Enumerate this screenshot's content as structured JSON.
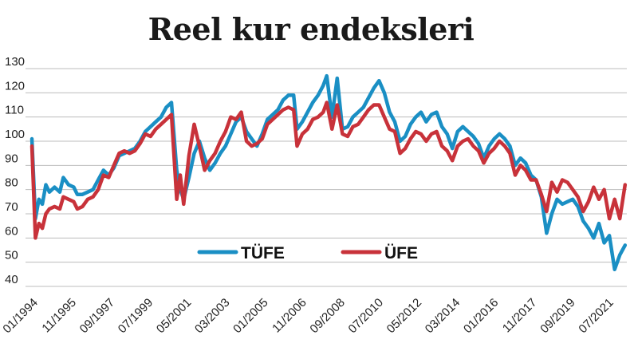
{
  "chart_data": {
    "type": "line",
    "title": "Reel kur endeksleri",
    "xlabel": "",
    "ylabel": "",
    "ylim": [
      40,
      130
    ],
    "yticks": [
      40,
      50,
      60,
      70,
      80,
      90,
      100,
      110,
      120,
      130
    ],
    "xlim": [
      "1994-01",
      "2022-06"
    ],
    "xtick_labels": [
      "01/1994",
      "11/1995",
      "09/1997",
      "07/1999",
      "05/2001",
      "03/2003",
      "01/2005",
      "11/2006",
      "09/2008",
      "07/2010",
      "05/2012",
      "03/2014",
      "01/2016",
      "11/2017",
      "09/2019",
      "07/2021"
    ],
    "grid": "horizontal",
    "legend": "inside-bottom-center",
    "colors": {
      "TÜFE": "#1a8fc4",
      "ÜFE": "#c8323a"
    },
    "series": [
      {
        "name": "TÜFE",
        "points": [
          [
            "1994-01",
            101
          ],
          [
            "1994-03",
            68
          ],
          [
            "1994-05",
            76
          ],
          [
            "1994-07",
            74
          ],
          [
            "1994-09",
            82
          ],
          [
            "1994-11",
            79
          ],
          [
            "1995-02",
            81
          ],
          [
            "1995-05",
            79
          ],
          [
            "1995-07",
            85
          ],
          [
            "1995-10",
            82
          ],
          [
            "1996-01",
            81
          ],
          [
            "1996-03",
            78
          ],
          [
            "1996-06",
            78
          ],
          [
            "1996-09",
            79
          ],
          [
            "1996-12",
            80
          ],
          [
            "1997-03",
            84
          ],
          [
            "1997-06",
            88
          ],
          [
            "1997-09",
            86
          ],
          [
            "1997-12",
            89
          ],
          [
            "1998-03",
            94
          ],
          [
            "1998-06",
            95
          ],
          [
            "1998-09",
            96
          ],
          [
            "1998-12",
            97
          ],
          [
            "1999-03",
            100
          ],
          [
            "1999-06",
            104
          ],
          [
            "1999-09",
            106
          ],
          [
            "1999-12",
            108
          ],
          [
            "2000-03",
            110
          ],
          [
            "2000-06",
            114
          ],
          [
            "2000-09",
            116
          ],
          [
            "2000-12",
            88
          ],
          [
            "2001-02",
            80
          ],
          [
            "2001-04",
            76
          ],
          [
            "2001-07",
            85
          ],
          [
            "2001-10",
            95
          ],
          [
            "2002-01",
            100
          ],
          [
            "2002-04",
            93
          ],
          [
            "2002-07",
            88
          ],
          [
            "2002-10",
            91
          ],
          [
            "2003-01",
            95
          ],
          [
            "2003-04",
            98
          ],
          [
            "2003-07",
            103
          ],
          [
            "2003-10",
            108
          ],
          [
            "2004-01",
            110
          ],
          [
            "2004-04",
            104
          ],
          [
            "2004-07",
            101
          ],
          [
            "2004-10",
            98
          ],
          [
            "2005-01",
            103
          ],
          [
            "2005-04",
            109
          ],
          [
            "2005-07",
            111
          ],
          [
            "2005-10",
            113
          ],
          [
            "2006-01",
            117
          ],
          [
            "2006-04",
            119
          ],
          [
            "2006-07",
            119
          ],
          [
            "2006-09",
            105
          ],
          [
            "2006-12",
            108
          ],
          [
            "2007-03",
            112
          ],
          [
            "2007-06",
            116
          ],
          [
            "2007-09",
            119
          ],
          [
            "2007-12",
            123
          ],
          [
            "2008-02",
            127
          ],
          [
            "2008-05",
            110
          ],
          [
            "2008-08",
            126
          ],
          [
            "2008-11",
            105
          ],
          [
            "2009-02",
            106
          ],
          [
            "2009-05",
            110
          ],
          [
            "2009-08",
            112
          ],
          [
            "2009-11",
            114
          ],
          [
            "2010-02",
            118
          ],
          [
            "2010-05",
            122
          ],
          [
            "2010-08",
            125
          ],
          [
            "2010-11",
            120
          ],
          [
            "2011-02",
            112
          ],
          [
            "2011-05",
            108
          ],
          [
            "2011-08",
            100
          ],
          [
            "2011-11",
            102
          ],
          [
            "2012-02",
            107
          ],
          [
            "2012-05",
            110
          ],
          [
            "2012-08",
            112
          ],
          [
            "2012-11",
            108
          ],
          [
            "2013-02",
            111
          ],
          [
            "2013-05",
            112
          ],
          [
            "2013-08",
            106
          ],
          [
            "2013-11",
            103
          ],
          [
            "2014-02",
            97
          ],
          [
            "2014-05",
            104
          ],
          [
            "2014-08",
            106
          ],
          [
            "2014-11",
            104
          ],
          [
            "2015-02",
            102
          ],
          [
            "2015-05",
            99
          ],
          [
            "2015-08",
            93
          ],
          [
            "2015-11",
            98
          ],
          [
            "2016-02",
            101
          ],
          [
            "2016-05",
            103
          ],
          [
            "2016-08",
            101
          ],
          [
            "2016-11",
            98
          ],
          [
            "2017-02",
            90
          ],
          [
            "2017-05",
            93
          ],
          [
            "2017-08",
            91
          ],
          [
            "2017-11",
            86
          ],
          [
            "2018-02",
            84
          ],
          [
            "2018-05",
            77
          ],
          [
            "2018-08",
            62
          ],
          [
            "2018-11",
            70
          ],
          [
            "2019-02",
            76
          ],
          [
            "2019-05",
            74
          ],
          [
            "2019-08",
            75
          ],
          [
            "2019-11",
            76
          ],
          [
            "2020-02",
            73
          ],
          [
            "2020-05",
            67
          ],
          [
            "2020-08",
            64
          ],
          [
            "2020-11",
            60
          ],
          [
            "2021-02",
            66
          ],
          [
            "2021-05",
            58
          ],
          [
            "2021-08",
            61
          ],
          [
            "2021-11",
            47
          ],
          [
            "2022-02",
            53
          ],
          [
            "2022-05",
            57
          ]
        ]
      },
      {
        "name": "ÜFE",
        "points": [
          [
            "1994-01",
            98
          ],
          [
            "1994-03",
            60
          ],
          [
            "1994-05",
            66
          ],
          [
            "1994-07",
            64
          ],
          [
            "1994-09",
            70
          ],
          [
            "1994-11",
            72
          ],
          [
            "1995-02",
            73
          ],
          [
            "1995-05",
            72
          ],
          [
            "1995-07",
            77
          ],
          [
            "1995-10",
            76
          ],
          [
            "1996-01",
            75
          ],
          [
            "1996-03",
            72
          ],
          [
            "1996-06",
            73
          ],
          [
            "1996-09",
            76
          ],
          [
            "1996-12",
            77
          ],
          [
            "1997-03",
            80
          ],
          [
            "1997-06",
            86
          ],
          [
            "1997-09",
            85
          ],
          [
            "1997-12",
            90
          ],
          [
            "1998-03",
            95
          ],
          [
            "1998-06",
            96
          ],
          [
            "1998-09",
            95
          ],
          [
            "1998-12",
            96
          ],
          [
            "1999-03",
            99
          ],
          [
            "1999-06",
            103
          ],
          [
            "1999-09",
            102
          ],
          [
            "1999-12",
            105
          ],
          [
            "2000-03",
            107
          ],
          [
            "2000-06",
            109
          ],
          [
            "2000-09",
            111
          ],
          [
            "2000-12",
            76
          ],
          [
            "2001-02",
            86
          ],
          [
            "2001-04",
            74
          ],
          [
            "2001-07",
            94
          ],
          [
            "2001-10",
            107
          ],
          [
            "2002-01",
            98
          ],
          [
            "2002-04",
            88
          ],
          [
            "2002-07",
            92
          ],
          [
            "2002-10",
            95
          ],
          [
            "2003-01",
            100
          ],
          [
            "2003-04",
            104
          ],
          [
            "2003-07",
            110
          ],
          [
            "2003-10",
            109
          ],
          [
            "2004-01",
            112
          ],
          [
            "2004-04",
            100
          ],
          [
            "2004-07",
            98
          ],
          [
            "2004-10",
            99
          ],
          [
            "2005-01",
            101
          ],
          [
            "2005-04",
            107
          ],
          [
            "2005-07",
            109
          ],
          [
            "2005-10",
            111
          ],
          [
            "2006-01",
            113
          ],
          [
            "2006-04",
            114
          ],
          [
            "2006-07",
            113
          ],
          [
            "2006-09",
            98
          ],
          [
            "2006-12",
            103
          ],
          [
            "2007-03",
            105
          ],
          [
            "2007-06",
            109
          ],
          [
            "2007-09",
            110
          ],
          [
            "2007-12",
            112
          ],
          [
            "2008-02",
            116
          ],
          [
            "2008-05",
            105
          ],
          [
            "2008-08",
            115
          ],
          [
            "2008-11",
            103
          ],
          [
            "2009-02",
            102
          ],
          [
            "2009-05",
            106
          ],
          [
            "2009-08",
            107
          ],
          [
            "2009-11",
            110
          ],
          [
            "2010-02",
            113
          ],
          [
            "2010-05",
            115
          ],
          [
            "2010-08",
            115
          ],
          [
            "2010-11",
            110
          ],
          [
            "2011-02",
            105
          ],
          [
            "2011-05",
            104
          ],
          [
            "2011-08",
            95
          ],
          [
            "2011-11",
            97
          ],
          [
            "2012-02",
            101
          ],
          [
            "2012-05",
            104
          ],
          [
            "2012-08",
            103
          ],
          [
            "2012-11",
            100
          ],
          [
            "2013-02",
            103
          ],
          [
            "2013-05",
            104
          ],
          [
            "2013-08",
            98
          ],
          [
            "2013-11",
            96
          ],
          [
            "2014-02",
            92
          ],
          [
            "2014-05",
            98
          ],
          [
            "2014-08",
            100
          ],
          [
            "2014-11",
            101
          ],
          [
            "2015-02",
            98
          ],
          [
            "2015-05",
            96
          ],
          [
            "2015-08",
            91
          ],
          [
            "2015-11",
            95
          ],
          [
            "2016-02",
            97
          ],
          [
            "2016-05",
            100
          ],
          [
            "2016-08",
            98
          ],
          [
            "2016-11",
            95
          ],
          [
            "2017-02",
            86
          ],
          [
            "2017-05",
            90
          ],
          [
            "2017-08",
            88
          ],
          [
            "2017-11",
            84
          ],
          [
            "2018-02",
            84
          ],
          [
            "2018-05",
            78
          ],
          [
            "2018-08",
            71
          ],
          [
            "2018-11",
            83
          ],
          [
            "2019-02",
            79
          ],
          [
            "2019-05",
            84
          ],
          [
            "2019-08",
            83
          ],
          [
            "2019-11",
            80
          ],
          [
            "2020-02",
            77
          ],
          [
            "2020-05",
            71
          ],
          [
            "2020-08",
            75
          ],
          [
            "2020-11",
            81
          ],
          [
            "2021-02",
            76
          ],
          [
            "2021-05",
            80
          ],
          [
            "2021-08",
            68
          ],
          [
            "2021-11",
            76
          ],
          [
            "2022-02",
            68
          ],
          [
            "2022-05",
            82
          ]
        ]
      }
    ]
  }
}
